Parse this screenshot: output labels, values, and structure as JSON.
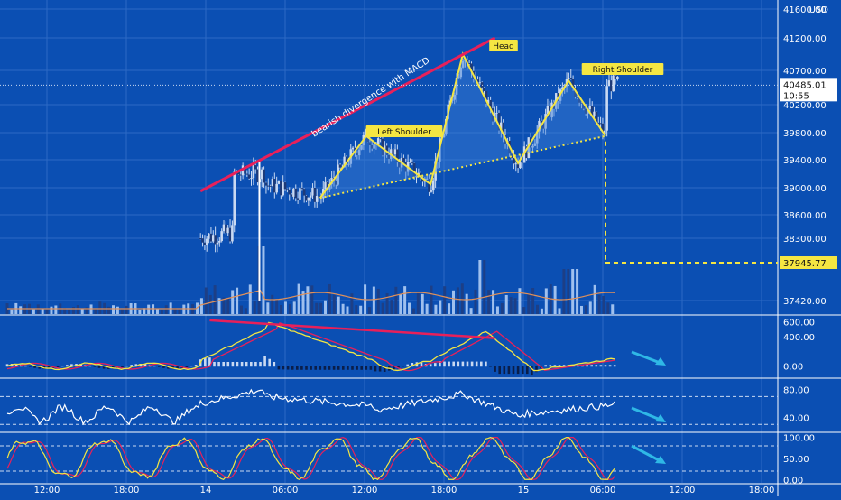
{
  "currency": "USD",
  "colors": {
    "background": "#0b4fb3",
    "grid": "#2d6ac4",
    "candle": "#c9d9f2",
    "pattern": "#f5e642",
    "trendline": "#e8205a",
    "arrow": "#2fb8e6",
    "macd": "#f5e642",
    "signal": "#e8205a",
    "rsi": "#ffffff",
    "stoch_k": "#f5e642",
    "stoch_d": "#e8205a",
    "volume_ma": "#e0915a"
  },
  "chart_data": [
    {
      "type": "candlestick",
      "title": "",
      "price_axis_ticks": [
        "41600.00",
        "41200.00",
        "40700.00",
        "40200.00",
        "39800.00",
        "39400.00",
        "39000.00",
        "38600.00",
        "38300.00",
        "37945.77",
        "37420.00"
      ],
      "time_axis_ticks": [
        "12:00",
        "18:00",
        "14",
        "06:00",
        "12:00",
        "18:00",
        "15",
        "06:00",
        "12:00",
        "18:00"
      ],
      "last_price": "40485.01",
      "countdown": "10:55",
      "target_price": "37945.77",
      "annotations": [
        "bearish divergence with MACD",
        "Left Shoulder",
        "Head",
        "Right Shoulder"
      ],
      "pattern_points": [
        {
          "label": "start",
          "t": 34,
          "price": 38850
        },
        {
          "label": "Left Shoulder",
          "t": 39,
          "price": 39750
        },
        {
          "label": "valley",
          "t": 46,
          "price": 39050
        },
        {
          "label": "Head",
          "t": 49.5,
          "price": 40950
        },
        {
          "label": "valley",
          "t": 55.5,
          "price": 39350
        },
        {
          "label": "Right Shoulder",
          "t": 61,
          "price": 40550
        },
        {
          "label": "end",
          "t": 65,
          "price": 39750
        }
      ],
      "neckline": [
        {
          "t": 34,
          "price": 38850
        },
        {
          "t": 65,
          "price": 39750
        }
      ],
      "price_trendline": [
        {
          "t": 21,
          "price": 38950
        },
        {
          "t": 53,
          "price": 41200
        }
      ]
    },
    {
      "type": "line",
      "title": "",
      "indicator": "MACD",
      "y_ticks": [
        "600.00",
        "400.00",
        "0.00"
      ],
      "ylim": [
        -150,
        680
      ],
      "divergence_line": [
        {
          "t": 22,
          "value": 620
        },
        {
          "t": 53,
          "value": 380
        }
      ]
    },
    {
      "type": "line",
      "title": "",
      "indicator": "RSI",
      "y_ticks": [
        "80.00",
        "40.00"
      ],
      "ylim": [
        20,
        95
      ],
      "bands": [
        70,
        30
      ]
    },
    {
      "type": "line",
      "title": "",
      "indicator": "Stochastic",
      "y_ticks": [
        "100.00",
        "50.00",
        "0.00"
      ],
      "ylim": [
        -8,
        110
      ],
      "bands": [
        80,
        20
      ]
    }
  ]
}
